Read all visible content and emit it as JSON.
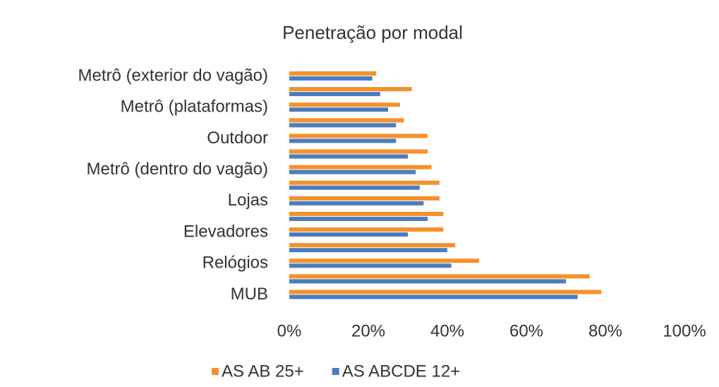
{
  "chart_data": {
    "type": "bar",
    "orientation": "horizontal",
    "title": "Penetração por modal",
    "categories": [
      "Metrô (exterior do vagão)",
      null,
      "Metrô (plataformas)",
      null,
      "Outdoor",
      null,
      "Metrô (dentro do vagão)",
      null,
      "Lojas",
      null,
      "Elevadores",
      null,
      "Relógios",
      null,
      "MUB"
    ],
    "series": [
      {
        "name": "AS AB 25+",
        "color": "#f5912a",
        "values": [
          22,
          31,
          28,
          29,
          35,
          35,
          36,
          38,
          38,
          39,
          39,
          42,
          48,
          76,
          79
        ]
      },
      {
        "name": "AS ABCDE 12+",
        "color": "#4a7dc0",
        "values": [
          21,
          23,
          25,
          27,
          27,
          30,
          32,
          33,
          34,
          35,
          30,
          40,
          41,
          70,
          73
        ]
      }
    ],
    "xlim": [
      0,
      100
    ],
    "xticks": [
      {
        "value": 0,
        "label": "0%"
      },
      {
        "value": 20,
        "label": "20%"
      },
      {
        "value": 40,
        "label": "40%"
      },
      {
        "value": 60,
        "label": "60%"
      },
      {
        "value": 80,
        "label": "80%"
      },
      {
        "value": 100,
        "label": "100%"
      }
    ],
    "grid": false,
    "legend": "bottom"
  }
}
